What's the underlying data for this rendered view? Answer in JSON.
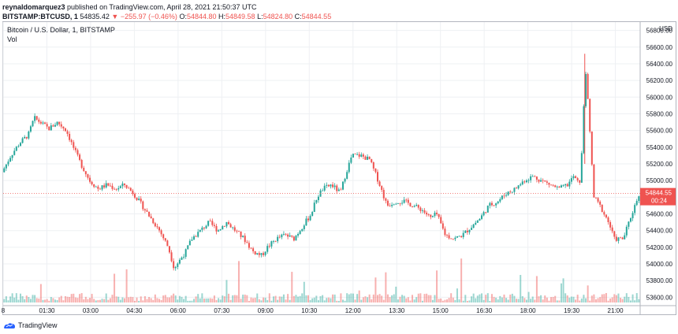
{
  "header": {
    "publisher": "reynaldomarquez3",
    "published_text": " published on TradingView.com, April 28, 2021 21:50:37 UTC",
    "symbol_line": "BITSTAMP:BTCUSD, 1",
    "last": "54835.42",
    "change_arrow": "▼",
    "change": "−255.97 (−0.46%)",
    "o_label": "O:",
    "o_value": "54844.80",
    "h_label": "H:",
    "h_value": "54849.58",
    "l_label": "L:",
    "l_value": "54824.80",
    "c_label": "C:",
    "c_value": "54844.55"
  },
  "legend": {
    "title": "Bitcoin / U.S. Dollar, 1, BITSTAMP",
    "vol": "Vol"
  },
  "price_tag": {
    "value": "54844.55",
    "countdown": "00:24"
  },
  "footer": {
    "brand": "TradingView"
  },
  "colors": {
    "up": "#26a69a",
    "down": "#ef5350",
    "grid": "#eef0f3",
    "axis_text": "#131722",
    "price_line": "#ef5350"
  },
  "chart_data": {
    "type": "candlestick",
    "title": "Bitcoin / U.S. Dollar, 1, BITSTAMP",
    "y_unit": "USD",
    "ylim": [
      53500,
      56900
    ],
    "y_ticks": [
      53600,
      53800,
      54000,
      54200,
      54400,
      54600,
      54800,
      55000,
      55200,
      55400,
      55600,
      55800,
      56000,
      56200,
      56400,
      56600,
      56800
    ],
    "y_tick_labels": [
      "53600.00",
      "53800.00",
      "54000.00",
      "54200.00",
      "54400.00",
      "54600.00",
      "54800.00",
      "55000.00",
      "55200.00",
      "55400.00",
      "55600.00",
      "55800.00",
      "56000.00",
      "56200.00",
      "56400.00",
      "56600.00",
      "56800.00"
    ],
    "x_ticks": [
      "8",
      "01:30",
      "03:00",
      "04:30",
      "06:00",
      "07:30",
      "09:00",
      "10:30",
      "12:00",
      "13:30",
      "15:00",
      "16:30",
      "18:00",
      "19:30",
      "21:00"
    ],
    "x_tick_times": [
      0,
      1.5,
      3,
      4.5,
      6,
      7.5,
      9,
      10.5,
      12,
      13.5,
      15,
      16.5,
      18,
      19.5,
      21
    ],
    "x_range_hours": [
      0.0,
      21.85
    ],
    "grid": true,
    "series": [
      {
        "name": "Price",
        "note": "1-minute candles summarized as price path keypoints (time in hours since 00:00, price USD)",
        "x": [
          0.0,
          0.3,
          0.6,
          0.9,
          1.1,
          1.3,
          1.6,
          1.9,
          2.2,
          2.5,
          2.7,
          3.0,
          3.3,
          3.6,
          3.9,
          4.2,
          4.5,
          4.8,
          5.1,
          5.4,
          5.7,
          5.9,
          6.1,
          6.3,
          6.5,
          6.8,
          7.1,
          7.4,
          7.7,
          8.0,
          8.3,
          8.6,
          8.9,
          9.1,
          9.4,
          9.7,
          10.0,
          10.3,
          10.6,
          10.8,
          11.0,
          11.3,
          11.6,
          11.8,
          12.0,
          12.3,
          12.6,
          12.9,
          13.2,
          13.5,
          13.8,
          14.1,
          14.4,
          14.7,
          14.9,
          15.2,
          15.5,
          15.8,
          16.1,
          16.4,
          16.7,
          17.0,
          17.3,
          17.6,
          17.9,
          18.2,
          18.5,
          18.8,
          19.1,
          19.4,
          19.6,
          19.8,
          19.9,
          20.0,
          20.1,
          20.3,
          20.5,
          20.8,
          21.0,
          21.3,
          21.6,
          21.85
        ],
        "y": [
          55100,
          55300,
          55450,
          55550,
          55750,
          55700,
          55620,
          55700,
          55600,
          55350,
          55200,
          55000,
          54900,
          54950,
          54900,
          54950,
          54850,
          54700,
          54550,
          54400,
          54200,
          53950,
          54050,
          54150,
          54300,
          54400,
          54500,
          54400,
          54500,
          54400,
          54300,
          54150,
          54100,
          54200,
          54300,
          54350,
          54300,
          54450,
          54600,
          54800,
          54900,
          54950,
          54850,
          55100,
          55300,
          55300,
          55250,
          55000,
          54700,
          54750,
          54750,
          54700,
          54650,
          54550,
          54600,
          54350,
          54300,
          54350,
          54450,
          54550,
          54700,
          54750,
          54850,
          54900,
          55000,
          55050,
          55000,
          54950,
          54900,
          54950,
          55050,
          54950,
          55400,
          56400,
          55900,
          54800,
          54700,
          54500,
          54300,
          54300,
          54600,
          54845
        ]
      }
    ]
  }
}
